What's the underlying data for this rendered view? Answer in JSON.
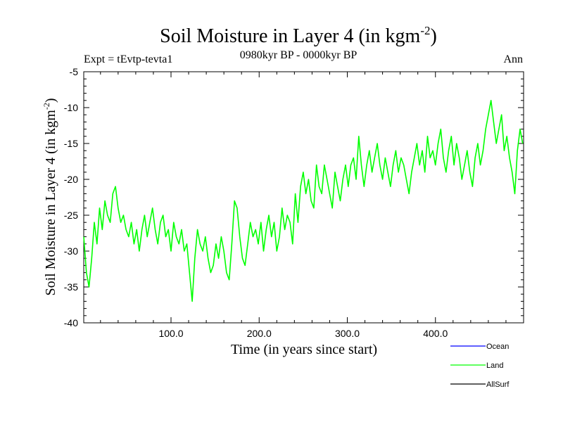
{
  "chart_data": {
    "type": "line",
    "title": "Soil Moisture in Layer 4 (in kgm",
    "title_sup": "-2",
    "title_close": ")",
    "subtitle_left": "Expt = tEvtp-tevta1",
    "subtitle_center": "0980kyr BP - 0000kyr BP",
    "subtitle_right": "Ann",
    "xlabel": "Time (in years since start)",
    "ylabel": "Soil Moisture in Layer 4 (in kgm",
    "ylabel_sup": "-2",
    "ylabel_close": ")",
    "xlim": [
      1,
      500
    ],
    "ylim": [
      -40,
      -5
    ],
    "xticks": [
      100,
      200,
      300,
      400
    ],
    "xtick_labels": [
      "100.0",
      "200.0",
      "300.0",
      "400.0"
    ],
    "yticks": [
      -40,
      -35,
      -30,
      -25,
      -20,
      -15,
      -10,
      -5
    ],
    "ytick_labels": [
      "-40",
      "-35",
      "-30",
      "-25",
      "-20",
      "-15",
      "-10",
      "-5"
    ],
    "legend_position": "bottom-right",
    "series": [
      {
        "name": "Ocean",
        "color": "#0000ff",
        "x": [],
        "values": []
      },
      {
        "name": "Land",
        "color": "#00ff00",
        "x": [
          1,
          4,
          7,
          10,
          13,
          16,
          19,
          22,
          25,
          28,
          31,
          34,
          37,
          40,
          43,
          46,
          49,
          52,
          55,
          58,
          61,
          64,
          67,
          70,
          73,
          76,
          79,
          82,
          85,
          88,
          91,
          94,
          97,
          100,
          103,
          106,
          109,
          112,
          115,
          118,
          121,
          124,
          127,
          130,
          133,
          136,
          139,
          142,
          145,
          148,
          151,
          154,
          157,
          160,
          163,
          166,
          169,
          172,
          175,
          178,
          181,
          184,
          187,
          190,
          193,
          196,
          199,
          202,
          205,
          208,
          211,
          214,
          217,
          220,
          223,
          226,
          229,
          232,
          235,
          238,
          241,
          244,
          247,
          250,
          253,
          256,
          259,
          262,
          265,
          268,
          271,
          274,
          277,
          280,
          283,
          286,
          289,
          292,
          295,
          298,
          301,
          304,
          307,
          310,
          313,
          316,
          319,
          322,
          325,
          328,
          331,
          334,
          337,
          340,
          343,
          346,
          349,
          352,
          355,
          358,
          361,
          364,
          367,
          370,
          373,
          376,
          379,
          382,
          385,
          388,
          391,
          394,
          397,
          400,
          403,
          406,
          409,
          412,
          415,
          418,
          421,
          424,
          427,
          430,
          433,
          436,
          439,
          442,
          445,
          448,
          451,
          454,
          457,
          460,
          463,
          466,
          469,
          472,
          475,
          478,
          481,
          484,
          487,
          490,
          493,
          496,
          499
        ],
        "values": [
          -28,
          -33,
          -35,
          -31,
          -26,
          -29,
          -24,
          -27,
          -23,
          -25,
          -26,
          -22,
          -21,
          -24,
          -26,
          -25,
          -27,
          -28,
          -26,
          -29,
          -27,
          -30,
          -27,
          -25,
          -28,
          -26,
          -24,
          -27,
          -29,
          -26,
          -25,
          -28,
          -27,
          -30,
          -26,
          -28,
          -29,
          -27,
          -30,
          -29,
          -33,
          -37,
          -31,
          -27,
          -29,
          -30,
          -28,
          -31,
          -33,
          -32,
          -29,
          -31,
          -28,
          -30,
          -33,
          -34,
          -29,
          -23,
          -24,
          -28,
          -31,
          -32,
          -29,
          -26,
          -28,
          -27,
          -29,
          -26,
          -30,
          -27,
          -25,
          -28,
          -26,
          -30,
          -28,
          -24,
          -27,
          -25,
          -26,
          -29,
          -22,
          -26,
          -21,
          -19,
          -22,
          -20,
          -23,
          -24,
          -18,
          -21,
          -22,
          -18,
          -20,
          -22,
          -24,
          -19,
          -21,
          -23,
          -20,
          -18,
          -21,
          -18,
          -17,
          -20,
          -14,
          -18,
          -21,
          -18,
          -16,
          -19,
          -17,
          -15,
          -18,
          -20,
          -17,
          -19,
          -21,
          -18,
          -16,
          -19,
          -17,
          -18,
          -20,
          -22,
          -19,
          -17,
          -15,
          -18,
          -16,
          -19,
          -14,
          -17,
          -16,
          -18,
          -15,
          -13,
          -17,
          -19,
          -16,
          -14,
          -18,
          -15,
          -17,
          -20,
          -18,
          -16,
          -19,
          -21,
          -17,
          -15,
          -18,
          -16,
          -13,
          -11,
          -9,
          -12,
          -15,
          -13,
          -11,
          -16,
          -14,
          -17,
          -19,
          -22,
          -16,
          -13,
          -15
        ]
      },
      {
        "name": "AllSurf",
        "color": "#000000",
        "x": [],
        "values": []
      }
    ]
  }
}
